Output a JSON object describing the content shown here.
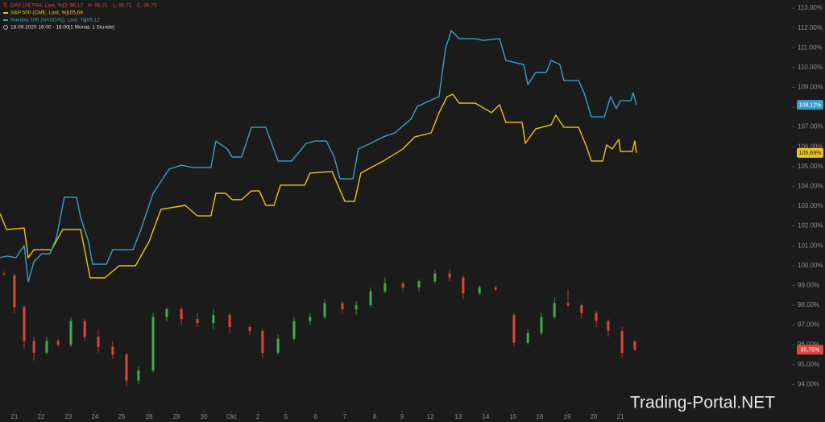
{
  "chart_data": {
    "type": "line",
    "period": "18.09.2020 16:00 - 16:00",
    "interval": "(1 Monat, 1 Stunde)",
    "watermark": "Trading-Portal.NET",
    "xlim": [
      0,
      29.05
    ],
    "ylim": [
      92.67,
      113.41
    ],
    "xticks": [
      {
        "value": 0.53,
        "label": "21"
      },
      {
        "value": 1.51,
        "label": "22"
      },
      {
        "value": 2.52,
        "label": "23"
      },
      {
        "value": 3.5,
        "label": "24"
      },
      {
        "value": 4.48,
        "label": "25"
      },
      {
        "value": 5.49,
        "label": "28"
      },
      {
        "value": 6.5,
        "label": "29"
      },
      {
        "value": 7.51,
        "label": "30"
      },
      {
        "value": 8.52,
        "label": "Okt"
      },
      {
        "value": 9.5,
        "label": "2"
      },
      {
        "value": 10.53,
        "label": "5"
      },
      {
        "value": 11.63,
        "label": "6"
      },
      {
        "value": 12.7,
        "label": "7"
      },
      {
        "value": 13.8,
        "label": "8"
      },
      {
        "value": 14.81,
        "label": "9"
      },
      {
        "value": 15.85,
        "label": "12"
      },
      {
        "value": 16.88,
        "label": "13"
      },
      {
        "value": 17.89,
        "label": "14"
      },
      {
        "value": 18.9,
        "label": "15"
      },
      {
        "value": 19.88,
        "label": "16"
      },
      {
        "value": 20.89,
        "label": "19"
      },
      {
        "value": 21.87,
        "label": "20"
      },
      {
        "value": 22.85,
        "label": "21"
      }
    ],
    "yticks": [
      {
        "value": 113,
        "label": "113.00%"
      },
      {
        "value": 112,
        "label": "112.00%"
      },
      {
        "value": 111,
        "label": "111.00%"
      },
      {
        "value": 110,
        "label": "110.00%"
      },
      {
        "value": 109,
        "label": "109.00%"
      },
      {
        "value": 108,
        "label": "108.00%"
      },
      {
        "value": 107,
        "label": "107.00%"
      },
      {
        "value": 106,
        "label": "106.00%"
      },
      {
        "value": 105,
        "label": "105.00%"
      },
      {
        "value": 104,
        "label": "104.00%"
      },
      {
        "value": 103,
        "label": "103.00%"
      },
      {
        "value": 102,
        "label": "102.00%"
      },
      {
        "value": 101,
        "label": "101.00%"
      },
      {
        "value": 100,
        "label": "100.00%"
      },
      {
        "value": 99,
        "label": "99.00%"
      },
      {
        "value": 98,
        "label": "98.00%"
      },
      {
        "value": 97,
        "label": "97.00%"
      },
      {
        "value": 96,
        "label": "96.00%"
      },
      {
        "value": 95,
        "label": "95.00%"
      },
      {
        "value": 94,
        "label": "94.00%"
      }
    ],
    "candles": {
      "type": "candlestick",
      "name": "DAX (XETRA, Last, %)",
      "color": "#e0443a",
      "up_color": "#3fae4a",
      "down_color": "#e0443a",
      "legend_values": [
        {
          "value": 96.17,
          "label": "O: 96,17"
        },
        {
          "value": 96.21,
          "label": "H: 96,21"
        },
        {
          "value": 95.71,
          "label": "L: 95,71"
        },
        {
          "value": 95.75,
          "label": "C: 95,75"
        }
      ],
      "tag": {
        "value": 95.75,
        "label": "95,75%"
      },
      "x": [
        0.15,
        0.53,
        0.89,
        1.25,
        1.72,
        2.14,
        2.61,
        3.12,
        3.62,
        4.15,
        4.66,
        5.1,
        5.64,
        6.14,
        6.68,
        7.27,
        7.86,
        8.46,
        9.2,
        9.67,
        10.24,
        10.83,
        11.42,
        11.96,
        12.61,
        13.12,
        13.65,
        14.18,
        14.84,
        15.43,
        16.02,
        16.56,
        17.06,
        17.66,
        18.25,
        18.93,
        19.44,
        19.94,
        20.42,
        20.92,
        21.42,
        21.96,
        22.4,
        22.91,
        23.38
      ],
      "open": [
        99.6,
        99.5,
        97.9,
        96.2,
        95.6,
        96.2,
        96.0,
        97.2,
        96.4,
        95.9,
        95.5,
        94.2,
        94.7,
        97.4,
        97.8,
        97.3,
        97.1,
        97.5,
        96.9,
        96.7,
        95.6,
        96.3,
        97.2,
        97.4,
        98.1,
        97.8,
        98.0,
        98.7,
        99.1,
        98.9,
        99.2,
        99.6,
        99.4,
        98.6,
        98.9,
        97.5,
        96.1,
        96.6,
        97.4,
        98.1,
        98.0,
        97.6,
        97.2,
        96.7,
        96.17
      ],
      "high": [
        99.7,
        99.6,
        98.0,
        96.4,
        96.4,
        96.3,
        97.4,
        97.3,
        96.8,
        96.2,
        95.6,
        94.9,
        97.6,
        97.9,
        97.9,
        97.6,
        97.8,
        97.6,
        97.0,
        96.8,
        96.5,
        97.4,
        97.6,
        98.3,
        98.2,
        98.2,
        98.9,
        99.4,
        99.2,
        99.3,
        99.8,
        99.8,
        99.5,
        99.0,
        99.0,
        97.6,
        96.8,
        97.6,
        98.4,
        98.8,
        98.1,
        97.7,
        97.3,
        96.9,
        96.21
      ],
      "low": [
        99.5,
        97.6,
        95.8,
        95.2,
        95.5,
        95.9,
        95.9,
        96.2,
        95.6,
        95.3,
        93.9,
        94.0,
        94.6,
        97.2,
        97.0,
        96.9,
        96.8,
        96.6,
        96.5,
        95.3,
        95.5,
        96.2,
        97.0,
        97.3,
        97.6,
        97.5,
        97.9,
        98.6,
        98.7,
        98.7,
        99.1,
        99.2,
        98.3,
        98.5,
        98.7,
        95.9,
        96.0,
        96.5,
        97.3,
        97.9,
        97.3,
        96.9,
        96.4,
        95.3,
        95.71
      ],
      "close": [
        99.55,
        97.9,
        96.2,
        95.6,
        96.2,
        96.0,
        97.2,
        96.4,
        95.9,
        95.5,
        94.2,
        94.7,
        97.4,
        97.8,
        97.3,
        97.1,
        97.5,
        96.9,
        96.7,
        95.6,
        96.3,
        97.2,
        97.4,
        98.1,
        97.8,
        98.0,
        98.7,
        99.1,
        98.9,
        99.2,
        99.6,
        99.4,
        98.6,
        98.9,
        98.8,
        96.1,
        96.6,
        97.4,
        98.1,
        98.0,
        97.6,
        97.2,
        96.7,
        95.6,
        95.75
      ]
    },
    "series": [
      {
        "name": "S&P 500 (CME, Last, %)",
        "color": "#f2c21b",
        "legend_value": {
          "value": 105.69,
          "label": "105,69"
        },
        "tag": {
          "value": 105.69,
          "label": "105,69%"
        },
        "x": [
          0,
          0.24,
          0.89,
          1.04,
          1.25,
          1.9,
          2.31,
          2.97,
          3.32,
          3.86,
          4.39,
          4.99,
          5.49,
          5.93,
          6.82,
          7.27,
          7.77,
          7.95,
          8.31,
          8.55,
          8.9,
          9.26,
          9.55,
          9.79,
          10.09,
          10.33,
          11.22,
          11.42,
          12.23,
          12.7,
          13.06,
          13.29,
          14.12,
          14.84,
          15.28,
          15.88,
          16.17,
          16.47,
          16.68,
          16.91,
          17.51,
          18.1,
          18.4,
          18.63,
          19.23,
          19.35,
          19.73,
          20.3,
          20.47,
          20.77,
          21.31,
          21.6,
          21.78,
          22.2,
          22.34,
          22.55,
          22.79,
          22.85,
          23.29,
          23.38,
          23.44
        ],
        "values": [
          102.63,
          101.82,
          101.9,
          100.4,
          100.8,
          100.8,
          101.82,
          101.82,
          99.38,
          99.38,
          99.99,
          99.99,
          101.21,
          102.84,
          103.04,
          102.51,
          102.51,
          103.65,
          103.65,
          103.33,
          103.33,
          103.77,
          103.77,
          103.04,
          103.04,
          104.06,
          104.06,
          104.67,
          104.75,
          103.24,
          103.24,
          104.67,
          105.28,
          105.89,
          106.5,
          106.7,
          107.72,
          108.53,
          108.65,
          108.2,
          108.2,
          107.72,
          108.12,
          107.23,
          107.23,
          106.17,
          106.9,
          107.11,
          107.59,
          106.98,
          106.98,
          106.01,
          105.28,
          105.28,
          106.09,
          105.89,
          106.37,
          105.76,
          105.76,
          106.29,
          105.69
        ]
      },
      {
        "name": "Nasdaq-100 (NASDAQ, Last, %)",
        "color": "#3a9fc8",
        "legend_value": {
          "value": 108.12,
          "label": "108,12"
        },
        "tag": {
          "value": 108.12,
          "label": "108,12%"
        },
        "x": [
          0,
          0.24,
          0.59,
          0.89,
          1.04,
          1.25,
          1.54,
          1.84,
          2.08,
          2.37,
          2.82,
          2.97,
          3.26,
          3.41,
          3.92,
          4.15,
          4.9,
          5.19,
          5.64,
          6.23,
          6.68,
          7.12,
          7.77,
          7.95,
          8.37,
          8.55,
          8.9,
          9.26,
          9.79,
          10.24,
          10.74,
          11.28,
          11.63,
          12.02,
          12.31,
          12.52,
          13.0,
          13.2,
          13.65,
          14.12,
          14.54,
          15.13,
          15.37,
          16.17,
          16.41,
          16.62,
          16.91,
          17.51,
          17.8,
          18.4,
          18.63,
          19.29,
          19.44,
          19.73,
          20.12,
          20.3,
          20.62,
          20.77,
          21.31,
          21.51,
          21.78,
          22.26,
          22.49,
          22.7,
          22.85,
          23.24,
          23.32,
          23.44
        ],
        "values": [
          100.4,
          100.48,
          100.4,
          101.01,
          99.18,
          100.2,
          100.6,
          100.6,
          101.41,
          103.45,
          103.45,
          102.43,
          101.21,
          100.07,
          100.07,
          100.8,
          100.8,
          101.82,
          103.65,
          104.87,
          105.07,
          104.95,
          104.95,
          106.29,
          105.89,
          105.48,
          105.48,
          106.98,
          106.98,
          105.28,
          105.28,
          106.17,
          106.29,
          106.29,
          105.48,
          104.38,
          104.38,
          105.89,
          106.17,
          106.5,
          106.7,
          107.39,
          108.04,
          108.53,
          110.97,
          111.86,
          111.46,
          111.46,
          111.37,
          111.46,
          110.36,
          110.15,
          109.14,
          109.75,
          109.75,
          110.36,
          110.15,
          109.34,
          109.34,
          108.73,
          107.51,
          107.51,
          108.53,
          107.92,
          108.33,
          108.33,
          108.73,
          108.12
        ]
      }
    ]
  }
}
